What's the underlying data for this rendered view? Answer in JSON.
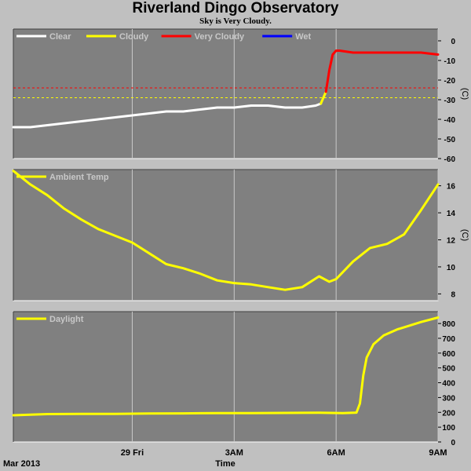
{
  "title": "Riverland Dingo Observatory",
  "subtitle": "Sky is Very Cloudy.",
  "time_axis": {
    "start_label": "Mar 2013",
    "xlabel": "Time",
    "ticks": [
      {
        "label": "29 Fri",
        "hours": 3.5
      },
      {
        "label": "3AM",
        "hours": 6.5
      },
      {
        "label": "6AM",
        "hours": 9.5
      },
      {
        "label": "9AM",
        "hours": 12.5
      }
    ],
    "xlim_hours": [
      0,
      12.5
    ]
  },
  "colors": {
    "panel_bg": "#808080",
    "frame_bg": "#c0c0c0",
    "clear": "#ffffff",
    "cloudy": "#ffff00",
    "very_cloudy": "#ff0000",
    "wet": "#0000ff"
  },
  "chart_data": [
    {
      "type": "line",
      "name": "sky",
      "ylabel": "(C)",
      "ylim": [
        -60,
        6
      ],
      "yticks": [
        0,
        -10,
        -20,
        -30,
        -40,
        -50,
        -60
      ],
      "legend": [
        "Clear",
        "Cloudy",
        "Very Cloudy",
        "Wet"
      ],
      "thresholds": [
        {
          "color": "#ff0000",
          "y": -24
        },
        {
          "color": "#ffff00",
          "y": -29
        }
      ],
      "series": [
        {
          "name": "Clear",
          "color": "#ffffff",
          "x": [
            0,
            0.5,
            1,
            1.5,
            2,
            2.5,
            3,
            3.5,
            4,
            4.5,
            5,
            5.5,
            6,
            6.5,
            7,
            7.5,
            8,
            8.5,
            8.9,
            9.05
          ],
          "y": [
            -44,
            -44,
            -43,
            -42,
            -41,
            -40,
            -39,
            -38,
            -37,
            -36,
            -36,
            -35,
            -34,
            -34,
            -33,
            -33,
            -34,
            -34,
            -33,
            -32
          ]
        },
        {
          "name": "Cloudy",
          "color": "#ffff00",
          "x": [
            9.05,
            9.15,
            9.2
          ],
          "y": [
            -32,
            -28,
            -26
          ]
        },
        {
          "name": "Very Cloudy",
          "color": "#ff0000",
          "x": [
            9.2,
            9.3,
            9.4,
            9.5,
            9.6,
            10,
            10.5,
            11,
            11.5,
            12,
            12.5
          ],
          "y": [
            -26,
            -15,
            -7,
            -5,
            -5,
            -6,
            -6,
            -6,
            -6,
            -6,
            -7
          ]
        }
      ]
    },
    {
      "type": "line",
      "name": "ambient",
      "ylabel": "(C)",
      "ylim": [
        7.5,
        17.2
      ],
      "yticks": [
        16,
        14,
        12,
        10,
        8
      ],
      "legend": [
        "Ambient Temp"
      ],
      "series": [
        {
          "name": "Ambient Temp",
          "color": "#ffff00",
          "x": [
            0,
            0.5,
            1,
            1.5,
            2,
            2.5,
            3,
            3.5,
            4,
            4.5,
            5,
            5.5,
            6,
            6.5,
            7,
            7.5,
            8,
            8.5,
            9,
            9.3,
            9.5,
            10,
            10.5,
            11,
            11.5,
            12,
            12.5
          ],
          "y": [
            17.1,
            16.1,
            15.3,
            14.3,
            13.5,
            12.8,
            12.3,
            11.8,
            11,
            10.2,
            9.9,
            9.5,
            9,
            8.8,
            8.7,
            8.5,
            8.3,
            8.5,
            9.3,
            8.9,
            9.1,
            10.4,
            11.4,
            11.7,
            12.4,
            14.2,
            16.1
          ]
        }
      ]
    },
    {
      "type": "line",
      "name": "daylight",
      "ylabel": "",
      "ylim": [
        0,
        880
      ],
      "yticks": [
        800,
        700,
        600,
        500,
        400,
        300,
        200,
        100,
        0
      ],
      "legend": [
        "Daylight"
      ],
      "series": [
        {
          "name": "Daylight",
          "color": "#ffff00",
          "x": [
            0,
            1,
            2,
            3,
            4,
            5,
            6,
            7,
            8,
            9,
            9.7,
            10.1,
            10.2,
            10.3,
            10.4,
            10.6,
            10.9,
            11.3,
            12,
            12.5
          ],
          "y": [
            180,
            188,
            190,
            190,
            192,
            193,
            195,
            195,
            196,
            197,
            195,
            198,
            260,
            450,
            570,
            660,
            720,
            760,
            810,
            840
          ]
        }
      ]
    }
  ]
}
